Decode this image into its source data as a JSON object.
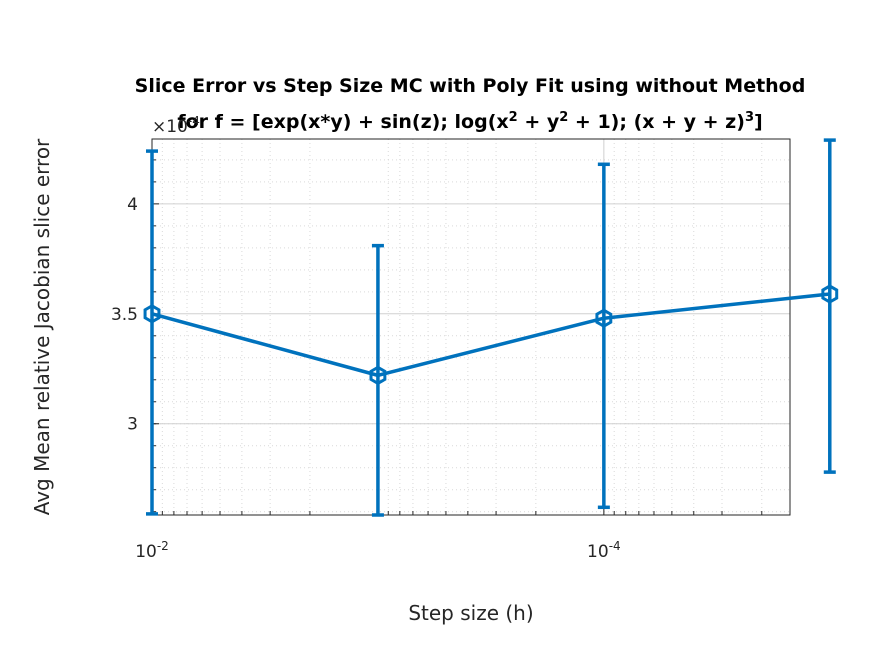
{
  "chart_data": {
    "type": "line",
    "title_line1": "Slice Error vs Step Size MC with Poly Fit using without Method",
    "title_line2": {
      "pre": "for f = [exp(x*y) + sin(z); log(x",
      "sup1": "2",
      "mid1": " + y",
      "sup2": "2",
      "mid2": " + 1); (x + y + z)",
      "sup3": "3",
      "post": "]"
    },
    "xlabel": "Step size (h)",
    "ylabel": "Avg Mean relative Jacobian slice error",
    "x_scale": "log",
    "x_direction": "reverse",
    "xlim": [
      0.01,
      1.5e-05
    ],
    "ylim": [
      0.0002585,
      0.0004295
    ],
    "y_exponent_label": "×10",
    "y_exponent_value": "-4",
    "x_ticks": [
      {
        "value": 0.01,
        "base": "10",
        "exp": "-2"
      },
      {
        "value": 0.0001,
        "base": "10",
        "exp": "-4"
      }
    ],
    "y_ticks": [
      {
        "value": 0.0003,
        "label": "3"
      },
      {
        "value": 0.00035,
        "label": "3.5"
      },
      {
        "value": 0.0004,
        "label": "4"
      }
    ],
    "grid": true,
    "minor_grid": true,
    "series": [
      {
        "color": "#0072BD",
        "marker": "hexagram",
        "x": [
          0.01,
          0.001,
          0.0001,
          1e-05
        ],
        "y": [
          0.00035,
          0.000322,
          0.000348,
          0.000359
        ],
        "err_low": [
          0.000259,
          0.0002585,
          0.000262,
          0.000278
        ],
        "err_high": [
          0.000424,
          0.000381,
          0.000418,
          0.000429
        ]
      }
    ]
  }
}
